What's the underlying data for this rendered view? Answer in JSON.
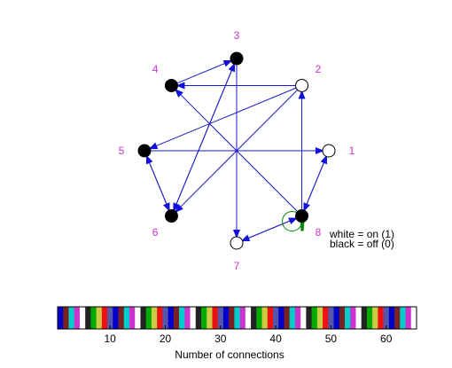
{
  "colors": {
    "edge": "#1a1acc",
    "arrowhead": "#1010dd",
    "label": "#cc33cc",
    "self_loop": "#008800",
    "node_on_fill": "#ffffff",
    "node_off_fill": "#000000",
    "node_stroke": "#000000"
  },
  "graph": {
    "nodes": [
      {
        "id": "1",
        "state": "on"
      },
      {
        "id": "2",
        "state": "on"
      },
      {
        "id": "3",
        "state": "off"
      },
      {
        "id": "4",
        "state": "off"
      },
      {
        "id": "5",
        "state": "off"
      },
      {
        "id": "6",
        "state": "off"
      },
      {
        "id": "7",
        "state": "on"
      },
      {
        "id": "8",
        "state": "off"
      }
    ],
    "edges": [
      {
        "from": "2",
        "to": "4"
      },
      {
        "from": "2",
        "to": "5"
      },
      {
        "from": "2",
        "to": "6"
      },
      {
        "from": "6",
        "to": "3"
      },
      {
        "from": "4",
        "to": "3"
      },
      {
        "from": "3",
        "to": "6"
      },
      {
        "from": "3",
        "to": "7"
      },
      {
        "from": "5",
        "to": "1"
      },
      {
        "from": "5",
        "to": "6"
      },
      {
        "from": "6",
        "to": "5"
      },
      {
        "from": "8",
        "to": "2"
      },
      {
        "from": "8",
        "to": "4"
      },
      {
        "from": "8",
        "to": "7"
      },
      {
        "from": "8",
        "to": "1"
      },
      {
        "from": "7",
        "to": "8"
      },
      {
        "from": "1",
        "to": "8"
      }
    ],
    "self_loops": [
      "8"
    ]
  },
  "legend": {
    "line1": "white = on (1)",
    "line2": "black = off (0)"
  },
  "colorbar": {
    "segment_count": 65,
    "palette": [
      "#0000cc",
      "#7a2222",
      "#00cccc",
      "#cc33cc",
      "#ffffff",
      "#222222",
      "#00aa00",
      "#cccc44",
      "#ee1111",
      "#5555aa"
    ],
    "ticks": [
      "10",
      "20",
      "30",
      "40",
      "50",
      "60"
    ],
    "xlabel": "Number of connections"
  }
}
